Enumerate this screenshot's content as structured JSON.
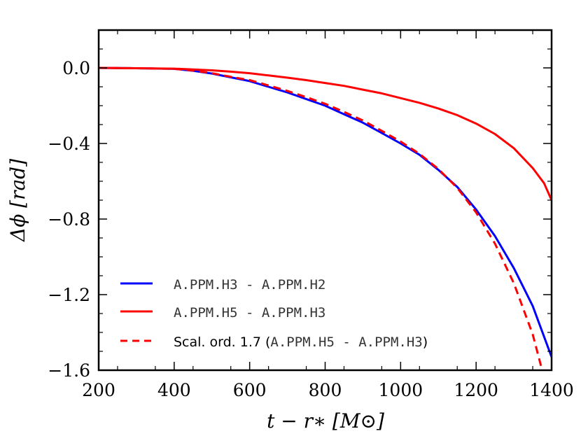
{
  "chart_data": {
    "type": "line",
    "title": "",
    "xlabel": "t − r∗ [M⊙]",
    "ylabel": "Δϕ [rad]",
    "xlim": [
      200,
      1400
    ],
    "ylim": [
      -1.6,
      0.2
    ],
    "xticks": [
      200,
      400,
      600,
      800,
      1000,
      1200,
      1400
    ],
    "xtick_labels": [
      "200",
      "400",
      "600",
      "800",
      "1000",
      "1200",
      "1400"
    ],
    "yticks": [
      0.0,
      -0.4,
      -0.8,
      -1.2,
      -1.6
    ],
    "ytick_labels": [
      "0.0",
      "−0.4",
      "−0.8",
      "−1.2",
      "−1.6"
    ],
    "grid": false,
    "legend_position": "bottom-left",
    "series": [
      {
        "name": "A.PPM.H3 - A.PPM.H2",
        "color": "#0000ff",
        "style": "solid",
        "x": [
          200,
          300,
          400,
          450,
          500,
          550,
          600,
          650,
          700,
          750,
          800,
          850,
          900,
          950,
          1000,
          1050,
          1100,
          1150,
          1200,
          1250,
          1300,
          1350,
          1400
        ],
        "y": [
          0.0,
          -0.002,
          -0.005,
          -0.015,
          -0.03,
          -0.05,
          -0.07,
          -0.1,
          -0.13,
          -0.165,
          -0.2,
          -0.245,
          -0.29,
          -0.345,
          -0.4,
          -0.46,
          -0.54,
          -0.63,
          -0.75,
          -0.89,
          -1.06,
          -1.26,
          -1.53
        ]
      },
      {
        "name": "A.PPM.H5 - A.PPM.H3",
        "color": "#ff0000",
        "style": "solid",
        "x": [
          200,
          300,
          400,
          450,
          500,
          550,
          600,
          650,
          700,
          750,
          800,
          850,
          900,
          950,
          1000,
          1050,
          1100,
          1150,
          1200,
          1250,
          1300,
          1350,
          1380,
          1400
        ],
        "y": [
          0.0,
          -0.002,
          -0.004,
          -0.008,
          -0.013,
          -0.02,
          -0.028,
          -0.04,
          -0.052,
          -0.065,
          -0.08,
          -0.095,
          -0.115,
          -0.135,
          -0.16,
          -0.185,
          -0.215,
          -0.25,
          -0.295,
          -0.35,
          -0.425,
          -0.53,
          -0.61,
          -0.7
        ]
      },
      {
        "name": "Scal. ord. 1.7",
        "name_suffix": "A.PPM.H5 - A.PPM.H3",
        "color": "#ff0000",
        "style": "dashed",
        "x": [
          200,
          300,
          400,
          450,
          500,
          550,
          600,
          650,
          700,
          750,
          800,
          850,
          900,
          950,
          1000,
          1050,
          1100,
          1150,
          1200,
          1250,
          1300,
          1350,
          1375
        ],
        "y": [
          0.0,
          -0.002,
          -0.005,
          -0.014,
          -0.028,
          -0.047,
          -0.065,
          -0.093,
          -0.122,
          -0.155,
          -0.19,
          -0.233,
          -0.278,
          -0.333,
          -0.39,
          -0.455,
          -0.535,
          -0.635,
          -0.765,
          -0.93,
          -1.14,
          -1.41,
          -1.6
        ]
      }
    ]
  }
}
